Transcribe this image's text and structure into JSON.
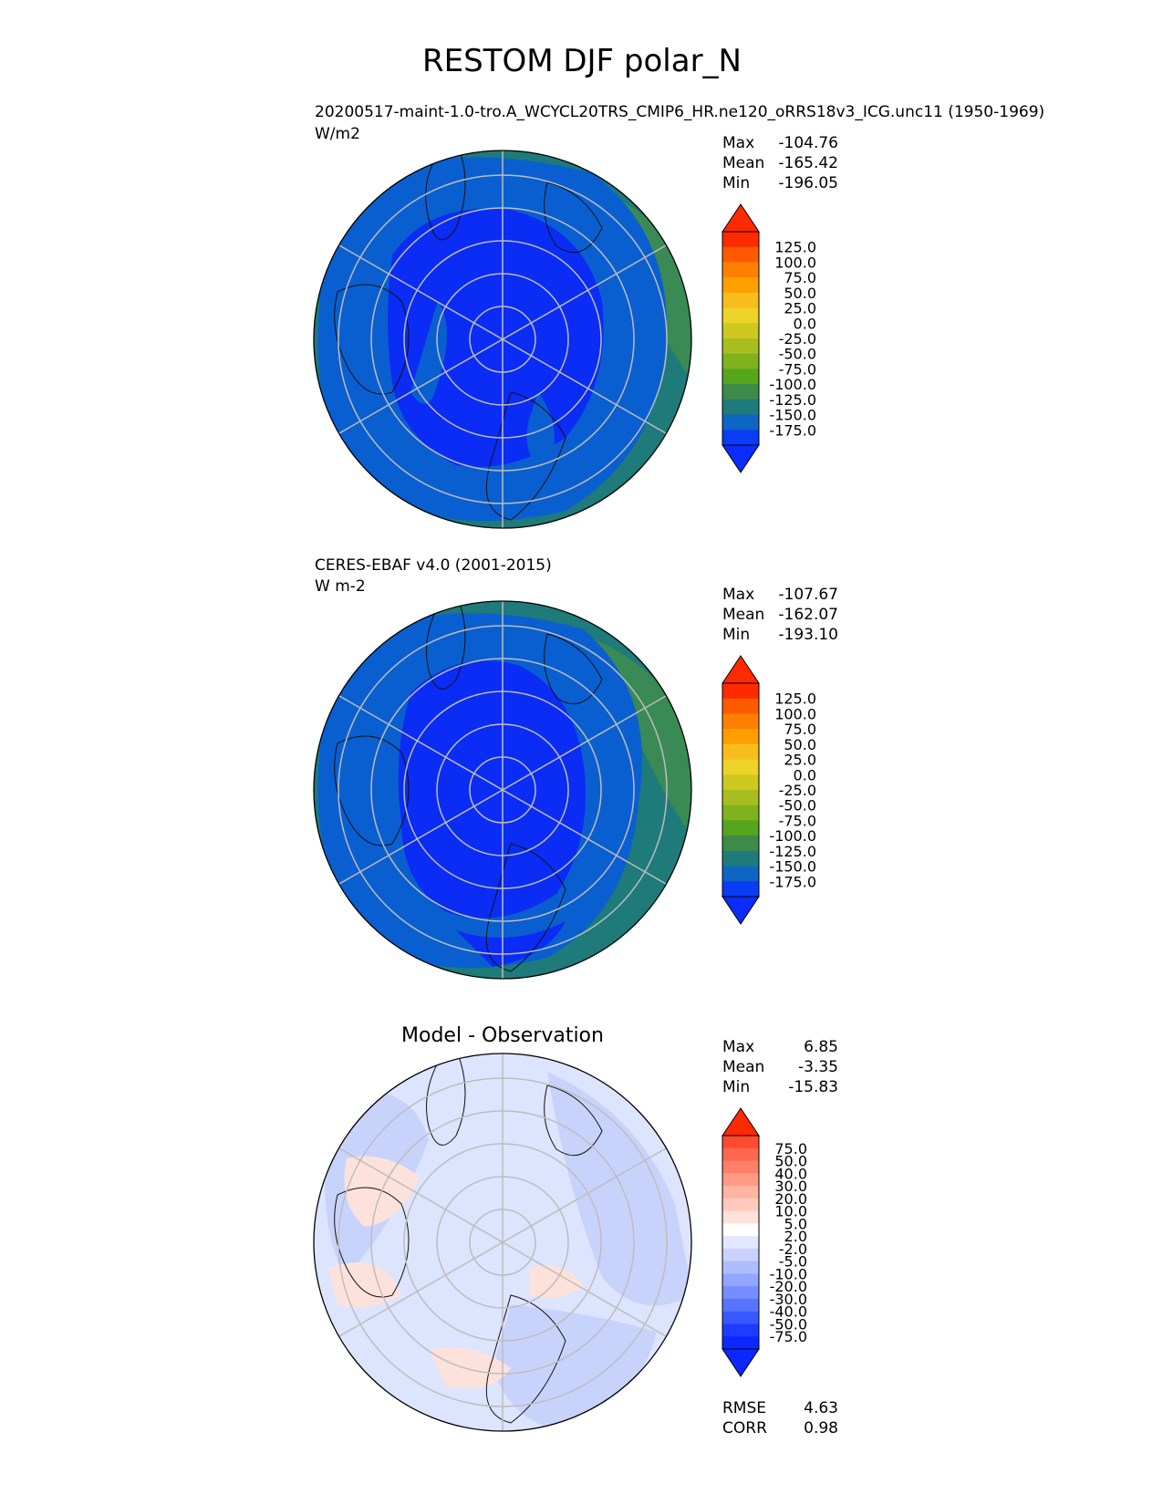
{
  "title": "RESTOM DJF polar_N",
  "panels": [
    {
      "id": "model",
      "name_line1": "20200517-maint-1.0-tro.A_WCYCL20TRS_CMIP6_HR.ne120_oRRS18v3_ICG.unc11 (1950-1969)",
      "name_line2": "W/m2",
      "center_title": "",
      "stats": [
        {
          "label": "Max",
          "value": "-104.76"
        },
        {
          "label": "Mean",
          "value": "-165.42"
        },
        {
          "label": "Min",
          "value": "-196.05"
        }
      ],
      "colorbar": {
        "ticks": [
          "125.0",
          "100.0",
          "75.0",
          "50.0",
          "25.0",
          "0.0",
          "-25.0",
          "-50.0",
          "-75.0",
          "-100.0",
          "-125.0",
          "-150.0",
          "-175.0"
        ],
        "colors": [
          "#ff2a00",
          "#ff5a00",
          "#ff8000",
          "#ffa000",
          "#f7bd1d",
          "#eed328",
          "#cfc820",
          "#a8bd20",
          "#7fb21c",
          "#55a51d",
          "#3e8a4a",
          "#1f7a7a",
          "#0e65c4",
          "#0a3cf5"
        ],
        "extend_top": "#ff2a00",
        "extend_bottom": "#0a2cff"
      },
      "map_colors": {
        "deep": "#0a2cf5",
        "mid": "#0a5fd0",
        "outer": "#1d7880",
        "edge": "#3a8a55"
      }
    },
    {
      "id": "obs",
      "name_line1": "CERES-EBAF v4.0 (2001-2015)",
      "name_line2": "W m-2",
      "center_title": "",
      "stats": [
        {
          "label": "Max",
          "value": "-107.67"
        },
        {
          "label": "Mean",
          "value": "-162.07"
        },
        {
          "label": "Min",
          "value": "-193.10"
        }
      ],
      "colorbar": {
        "ticks": [
          "125.0",
          "100.0",
          "75.0",
          "50.0",
          "25.0",
          "0.0",
          "-25.0",
          "-50.0",
          "-75.0",
          "-100.0",
          "-125.0",
          "-150.0",
          "-175.0"
        ],
        "colors": [
          "#ff2a00",
          "#ff5a00",
          "#ff8000",
          "#ffa000",
          "#f7bd1d",
          "#eed328",
          "#cfc820",
          "#a8bd20",
          "#7fb21c",
          "#55a51d",
          "#3e8a4a",
          "#1f7a7a",
          "#0e65c4",
          "#0a3cf5"
        ],
        "extend_top": "#ff2a00",
        "extend_bottom": "#0a2cff"
      },
      "map_colors": {
        "deep": "#0a2cf5",
        "mid": "#0a5fd0",
        "outer": "#1d7880",
        "edge": "#3a8a55"
      }
    },
    {
      "id": "diff",
      "name_line1": "",
      "name_line2": "",
      "center_title": "Model - Observation",
      "stats": [
        {
          "label": "Max",
          "value": "6.85"
        },
        {
          "label": "Mean",
          "value": "-3.35"
        },
        {
          "label": "Min",
          "value": "-15.83"
        }
      ],
      "colorbar": {
        "ticks": [
          "75.0",
          "50.0",
          "40.0",
          "30.0",
          "20.0",
          "10.0",
          "5.0",
          "2.0",
          "-2.0",
          "-5.0",
          "-10.0",
          "-20.0",
          "-30.0",
          "-40.0",
          "-50.0",
          "-75.0"
        ],
        "colors": [
          "#ff4a30",
          "#ff6650",
          "#ff8068",
          "#ff9a85",
          "#ffb3a2",
          "#ffcabd",
          "#ffe2dc",
          "#ffffff",
          "#e4e8ff",
          "#c9d2ff",
          "#aebdff",
          "#92a6ff",
          "#758dff",
          "#5874ff",
          "#3a58ff",
          "#1e3cff",
          "#0a28ff"
        ],
        "extend_top": "#ff2a00",
        "extend_bottom": "#0a28ff"
      },
      "map_colors": {
        "deep": "#c8d3fb",
        "mid": "#dde4fd",
        "outer": "#ffffff",
        "edge": "#c3cdf8"
      },
      "bottom_stats": [
        {
          "label": "RMSE",
          "value": "4.63"
        },
        {
          "label": "CORR",
          "value": "0.98"
        }
      ]
    }
  ]
}
